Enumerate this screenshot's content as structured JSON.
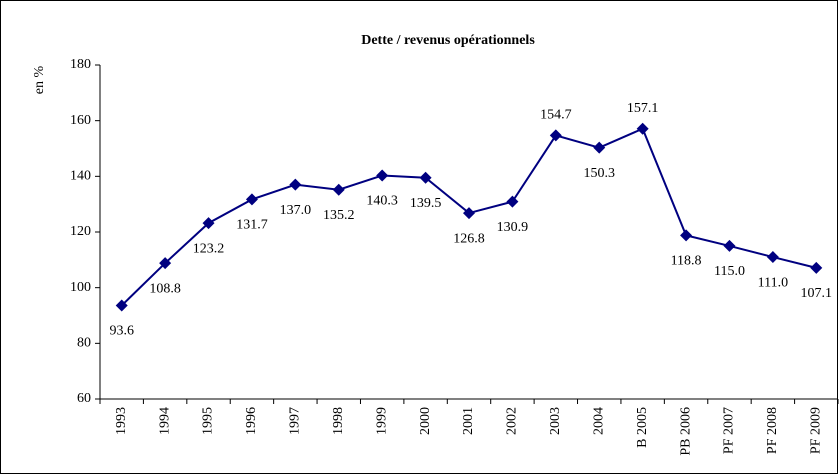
{
  "chart_data": {
    "type": "line",
    "title": "Dette / revenus opérationnels",
    "y_label": "en %",
    "categories": [
      "1993",
      "1994",
      "1995",
      "1996",
      "1997",
      "1998",
      "1999",
      "2000",
      "2001",
      "2002",
      "2003",
      "2004",
      "B 2005",
      "PB 2006",
      "PF 2007",
      "PF 2008",
      "PF 2009"
    ],
    "series": [
      {
        "name": "Dette / revenus opérationnels",
        "color": "#000080",
        "values": [
          93.6,
          108.8,
          123.2,
          131.7,
          137.0,
          135.2,
          140.3,
          139.5,
          126.8,
          130.9,
          154.7,
          150.3,
          157.1,
          118.8,
          115.0,
          111.0,
          107.1
        ],
        "value_labels": [
          "93.6",
          "108.8",
          "123.2",
          "131.7",
          "137.0",
          "135.2",
          "140.3",
          "139.5",
          "126.8",
          "130.9",
          "154.7",
          "150.3",
          "157.1",
          "118.8",
          "115.0",
          "111.0",
          "107.1"
        ]
      }
    ],
    "ylim": [
      60,
      180
    ],
    "yticks": [
      60,
      80,
      100,
      120,
      140,
      160,
      180
    ],
    "grid": false,
    "legend": false
  }
}
